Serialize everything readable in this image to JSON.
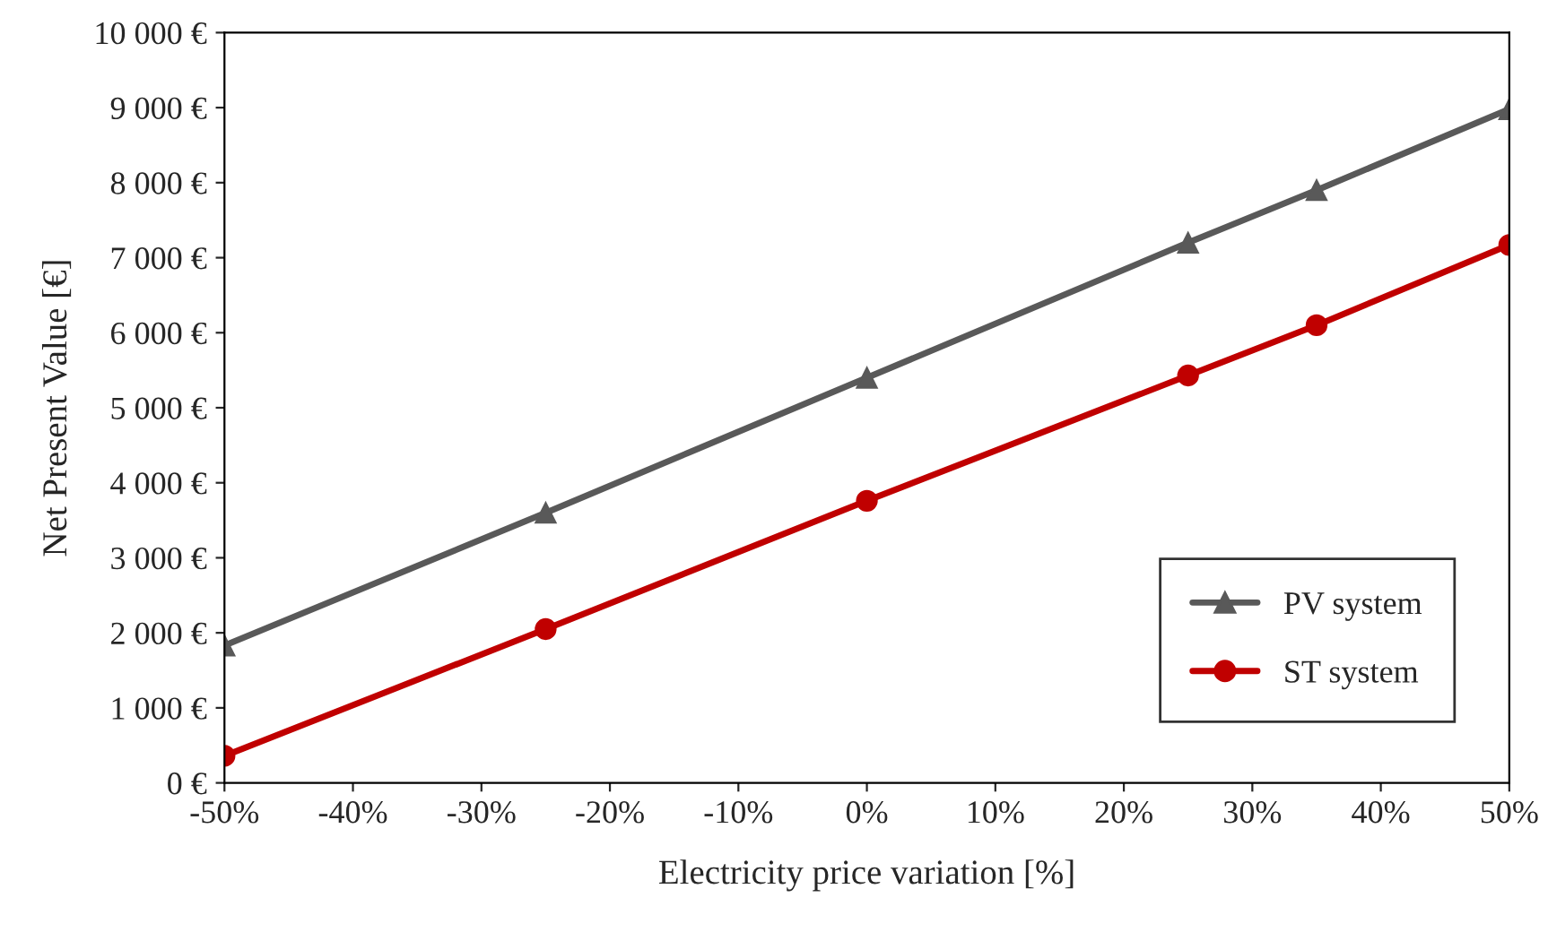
{
  "chart_data": {
    "type": "line",
    "xlabel": "Electricity price variation [%]",
    "ylabel": "Net Present Value [€]",
    "x": [
      -50,
      -25,
      0,
      25,
      35,
      50
    ],
    "series": [
      {
        "name": "PV system",
        "color": "#595959",
        "marker": "triangle",
        "values": [
          1830,
          3600,
          5400,
          7200,
          7900,
          8980
        ]
      },
      {
        "name": "ST system",
        "color": "#c00000",
        "marker": "circle",
        "values": [
          360,
          2050,
          3760,
          5430,
          6100,
          7170
        ]
      }
    ],
    "xlim": [
      -50,
      50
    ],
    "xticks": [
      {
        "value": -50,
        "label": "-50%"
      },
      {
        "value": -40,
        "label": "-40%"
      },
      {
        "value": -30,
        "label": "-30%"
      },
      {
        "value": -20,
        "label": "-20%"
      },
      {
        "value": -10,
        "label": "-10%"
      },
      {
        "value": 0,
        "label": "0%"
      },
      {
        "value": 10,
        "label": "10%"
      },
      {
        "value": 20,
        "label": "20%"
      },
      {
        "value": 30,
        "label": "30%"
      },
      {
        "value": 40,
        "label": "40%"
      },
      {
        "value": 50,
        "label": "50%"
      }
    ],
    "ylim": [
      0,
      10000
    ],
    "yticks": [
      {
        "value": 0,
        "label": "0 €"
      },
      {
        "value": 1000,
        "label": "1 000 €"
      },
      {
        "value": 2000,
        "label": "2 000 €"
      },
      {
        "value": 3000,
        "label": "3 000 €"
      },
      {
        "value": 4000,
        "label": "4 000 €"
      },
      {
        "value": 5000,
        "label": "5 000 €"
      },
      {
        "value": 6000,
        "label": "6 000 €"
      },
      {
        "value": 7000,
        "label": "7 000 €"
      },
      {
        "value": 8000,
        "label": "8 000 €"
      },
      {
        "value": 9000,
        "label": "9 000 €"
      },
      {
        "value": 10000,
        "label": "10 000 €"
      }
    ],
    "grid": false,
    "legend": "lower right",
    "line_style": "solid"
  }
}
